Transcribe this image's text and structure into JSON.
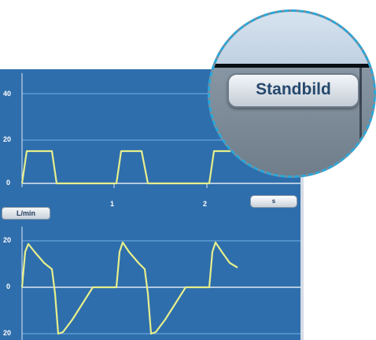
{
  "monitor": {
    "upper_chart": {
      "y_ticks": [
        "40",
        "20",
        "0"
      ],
      "x_ticks": [
        "1",
        "2"
      ]
    },
    "lower_chart": {
      "unit_label": "L/min",
      "y_ticks": [
        "20",
        "0",
        "20"
      ]
    },
    "small_button_label": "s"
  },
  "zoom": {
    "freeze_button_label": "Standbild"
  },
  "colors": {
    "panel_background": "#2f6eac",
    "waveform": "#e6ef8c",
    "gridline": "#6fb2e6",
    "zoom_border": "#2aa7d9"
  }
}
